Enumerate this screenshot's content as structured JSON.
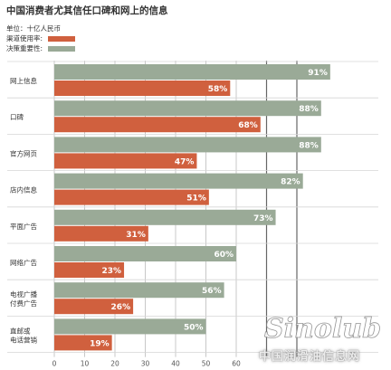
{
  "title": "中国消费者尤其信任口碑和网上的信息",
  "unit_label": "单位：十亿人民币",
  "legend": [
    {
      "label": "渠道使用率:",
      "color": "#d0603e"
    },
    {
      "label": "决策重要性:",
      "color": "#9aaa97"
    }
  ],
  "watermark": {
    "logo_text": "Sinolub.com",
    "text": "中国润滑油信息网"
  },
  "chart_data": {
    "type": "bar",
    "orientation": "horizontal",
    "categories": [
      [
        "网上信息"
      ],
      [
        "口碑"
      ],
      [
        "官方网页"
      ],
      [
        "店内信息"
      ],
      [
        "平面广告"
      ],
      [
        "网络广告"
      ],
      [
        "电视广播",
        "付费广告"
      ],
      [
        "直邮或",
        "电话营销"
      ]
    ],
    "series": [
      {
        "name": "决策重要性",
        "color": "#9aaa97",
        "values": [
          91,
          88,
          88,
          82,
          73,
          60,
          56,
          50
        ]
      },
      {
        "name": "渠道使用率",
        "color": "#d0603e",
        "values": [
          58,
          68,
          47,
          51,
          31,
          23,
          26,
          19
        ]
      }
    ],
    "value_suffix": "%",
    "xlim": [
      0,
      100
    ],
    "xticks": [
      0,
      10,
      20,
      30,
      40,
      50,
      60
    ],
    "grid": true
  }
}
